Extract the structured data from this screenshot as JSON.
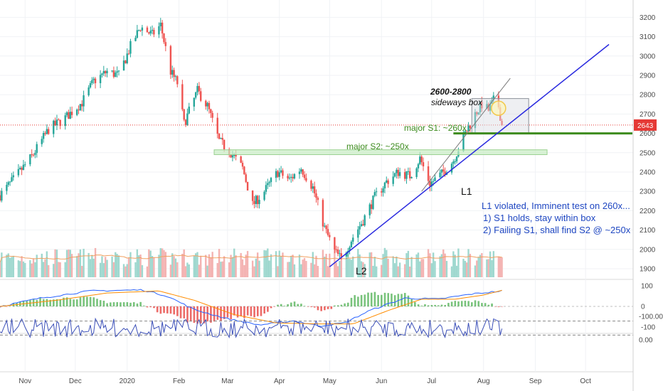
{
  "chart_data": {
    "type": "candlestick",
    "colors": {
      "up": "#26a69a",
      "down": "#ef5350",
      "trendline": "#2a2adf",
      "support": "#3d8b1e",
      "macd": "#2962ff",
      "signal": "#ff8c00",
      "rsi": "#3b4fb8",
      "rsi_band": "#e7dcf5",
      "price_line": "#e53935"
    },
    "price_axis": {
      "ylim": [
        1850,
        3250
      ],
      "ticks": [
        "3200",
        "3100",
        "3000",
        "2900",
        "2800",
        "2700",
        "2600",
        "2500",
        "2400",
        "2300",
        "2200",
        "2100",
        "2000",
        "1900"
      ]
    },
    "last_price": {
      "value": 2643,
      "label": "2643"
    },
    "macd_axis": {
      "ticks": [
        "100",
        "0",
        "-100"
      ]
    },
    "rsi_axis": {
      "ticks": [
        "0.00",
        "-100.00"
      ]
    },
    "x_axis": {
      "labels": [
        {
          "text": "Nov",
          "date": "2019-11-01"
        },
        {
          "text": "Dec",
          "date": "2019-12-01"
        },
        {
          "text": "2020",
          "date": "2020-01-01"
        },
        {
          "text": "Feb",
          "date": "2020-02-01"
        },
        {
          "text": "Mar",
          "date": "2020-03-01"
        },
        {
          "text": "Apr",
          "date": "2020-04-01"
        },
        {
          "text": "May",
          "date": "2020-05-01"
        },
        {
          "text": "Jun",
          "date": "2020-06-01"
        },
        {
          "text": "Jul",
          "date": "2020-07-01"
        },
        {
          "text": "Aug",
          "date": "2020-08-01"
        },
        {
          "text": "Sep",
          "date": "2020-09-01"
        },
        {
          "text": "Oct",
          "date": "2020-10-01"
        }
      ]
    },
    "price_path": [
      [
        "2019-10-17",
        2280
      ],
      [
        "2019-10-25",
        2360
      ],
      [
        "2019-11-05",
        2480
      ],
      [
        "2019-11-15",
        2620
      ],
      [
        "2019-11-25",
        2680
      ],
      [
        "2019-12-05",
        2760
      ],
      [
        "2019-12-12",
        2870
      ],
      [
        "2019-12-20",
        2920
      ],
      [
        "2019-12-27",
        2900
      ],
      [
        "2020-01-03",
        3050
      ],
      [
        "2020-01-09",
        3150
      ],
      [
        "2020-01-16",
        3110
      ],
      [
        "2020-01-21",
        3160
      ],
      [
        "2020-01-27",
        2920
      ],
      [
        "2020-01-31",
        2860
      ],
      [
        "2020-02-04",
        2650
      ],
      [
        "2020-02-12",
        2820
      ],
      [
        "2020-02-18",
        2740
      ],
      [
        "2020-02-25",
        2560
      ],
      [
        "2020-03-03",
        2500
      ],
      [
        "2020-03-10",
        2420
      ],
      [
        "2020-03-16",
        2230
      ],
      [
        "2020-03-23",
        2300
      ],
      [
        "2020-03-31",
        2400
      ],
      [
        "2020-04-07",
        2360
      ],
      [
        "2020-04-14",
        2420
      ],
      [
        "2020-04-21",
        2320
      ],
      [
        "2020-04-28",
        2110
      ],
      [
        "2020-05-04",
        1990
      ],
      [
        "2020-05-08",
        1950
      ],
      [
        "2020-05-14",
        2050
      ],
      [
        "2020-05-21",
        2150
      ],
      [
        "2020-05-28",
        2270
      ],
      [
        "2020-06-04",
        2350
      ],
      [
        "2020-06-11",
        2400
      ],
      [
        "2020-06-18",
        2380
      ],
      [
        "2020-06-24",
        2470
      ],
      [
        "2020-06-30",
        2340
      ],
      [
        "2020-07-07",
        2390
      ],
      [
        "2020-07-14",
        2460
      ],
      [
        "2020-07-21",
        2600
      ],
      [
        "2020-07-27",
        2700
      ],
      [
        "2020-07-31",
        2750
      ],
      [
        "2020-08-04",
        2720
      ],
      [
        "2020-08-07",
        2770
      ],
      [
        "2020-08-10",
        2740
      ],
      [
        "2020-08-12",
        2643
      ]
    ],
    "volume": {
      "range_start": "2019-10-17",
      "range_end": "2020-08-12",
      "max": 100
    },
    "indicators": {
      "macd_path": [
        [
          "2019-10-17",
          0
        ],
        [
          "2019-11-10",
          40
        ],
        [
          "2019-12-10",
          75
        ],
        [
          "2020-01-10",
          80
        ],
        [
          "2020-01-25",
          50
        ],
        [
          "2020-02-10",
          -15
        ],
        [
          "2020-03-01",
          -60
        ],
        [
          "2020-03-20",
          -90
        ],
        [
          "2020-04-10",
          -70
        ],
        [
          "2020-04-25",
          -95
        ],
        [
          "2020-05-10",
          -80
        ],
        [
          "2020-05-25",
          -20
        ],
        [
          "2020-06-15",
          40
        ],
        [
          "2020-07-05",
          35
        ],
        [
          "2020-07-25",
          60
        ],
        [
          "2020-08-12",
          75
        ]
      ],
      "signal_path": [
        [
          "2019-10-17",
          0
        ],
        [
          "2019-11-20",
          30
        ],
        [
          "2019-12-20",
          65
        ],
        [
          "2020-01-20",
          75
        ],
        [
          "2020-02-10",
          30
        ],
        [
          "2020-03-05",
          -40
        ],
        [
          "2020-03-30",
          -80
        ],
        [
          "2020-04-25",
          -85
        ],
        [
          "2020-05-15",
          -85
        ],
        [
          "2020-06-05",
          -20
        ],
        [
          "2020-06-25",
          35
        ],
        [
          "2020-07-15",
          35
        ],
        [
          "2020-08-01",
          55
        ],
        [
          "2020-08-12",
          78
        ]
      ]
    },
    "trendlines": [
      {
        "name": "L1",
        "from": [
          "2020-06-25",
          2300
        ],
        "to": [
          "2020-08-17",
          2885
        ]
      },
      {
        "name": "L2",
        "from": [
          "2020-05-01",
          1910
        ],
        "to": [
          "2020-10-15",
          3060
        ]
      }
    ],
    "boxes": [
      {
        "name": "sideways-box",
        "from": [
          "2020-07-25",
          2600
        ],
        "to": [
          "2020-08-28",
          2780
        ]
      }
    ],
    "support_zones": [
      {
        "name": "S2",
        "from": [
          "2020-02-22",
          2490
        ],
        "to": [
          "2020-09-08",
          2515
        ]
      }
    ],
    "support_lines": [
      {
        "name": "S1",
        "from": [
          "2020-07-14",
          2600
        ],
        "to": [
          "2020-10-29",
          2600
        ]
      }
    ],
    "annotations": {
      "box_title": "2600-2800",
      "box_subtitle": "sideways box",
      "s1": "major S1: ~260x",
      "s2": "major S2: ~250x",
      "l1": "L1",
      "l2": "L2",
      "note_1": "L1 violated, Imminent test on 260x...",
      "note_2": "1) S1 holds, stay within box",
      "note_3": "2) Failing S1, shall find S2 @ ~250x"
    }
  }
}
